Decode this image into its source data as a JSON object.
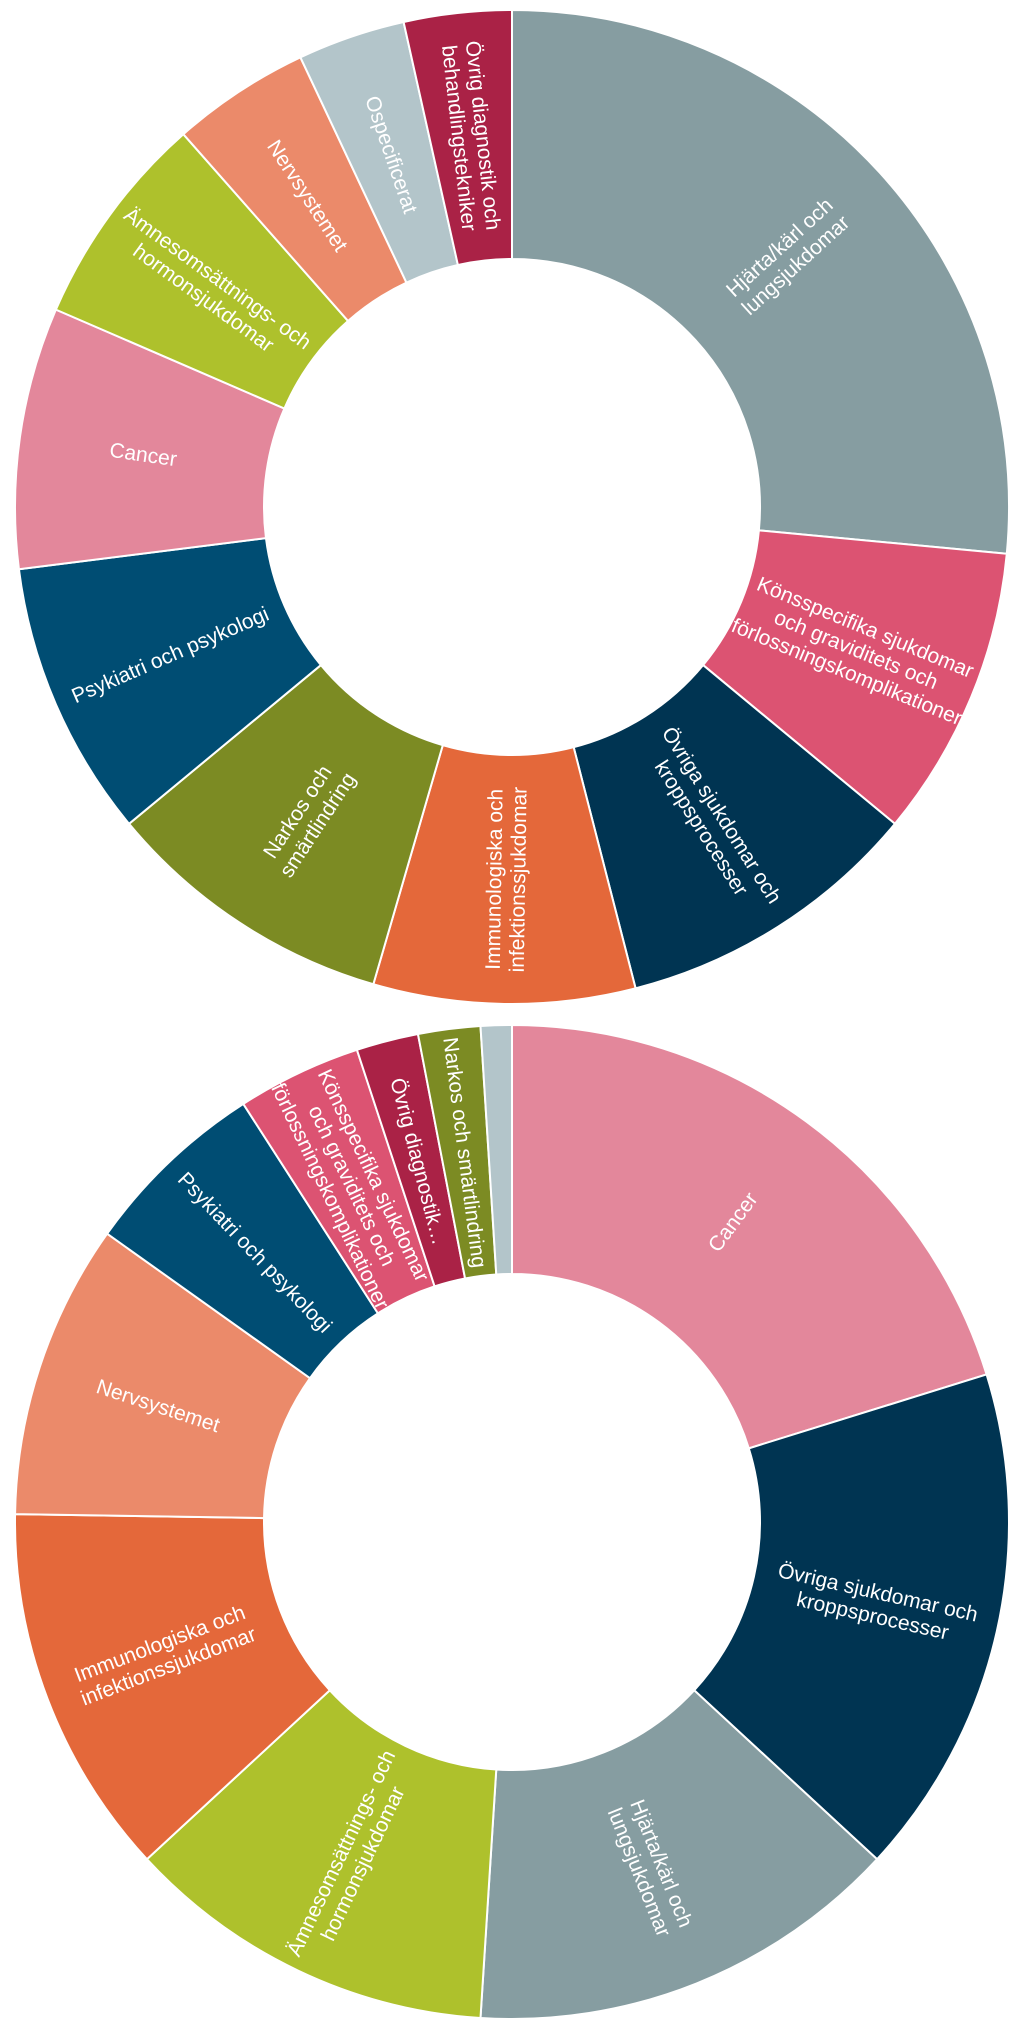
{
  "chart_data": [
    {
      "type": "pie",
      "donut": true,
      "title": "",
      "categories": [
        "Hjärta/kärl och lungsjukdomar",
        "Könsspecifika sjukdomar och graviditets och förlossningskomplikationer",
        "Övriga sjukdomar och kroppsprocesser",
        "Immunologiska och infektionssjukdomar",
        "Narkos och smärtlindring",
        "Psykiatri och psykologi",
        "Cancer",
        "Ämnesomsättnings- och hormonsjukdomar",
        "Nervsystemet",
        "Ospecificerat",
        "Övrig diagnostik och behandlingstekniker"
      ],
      "labels": [
        [
          "Hjärta/kärl och",
          "lungsjukdomar"
        ],
        [
          "Könsspecifika sjukdomar",
          "och graviditets och",
          "förlossningskomplikationer"
        ],
        [
          "Övriga sjukdomar  och",
          "kroppsprocesser"
        ],
        [
          "Immunologiska och",
          "infektionssjukdomar"
        ],
        [
          "Narkos och",
          "smärtlindring"
        ],
        [
          "Psykiatri och psykologi"
        ],
        [
          "Cancer"
        ],
        [
          "Ämnesomsättnings- och",
          "hormonsjukdomar"
        ],
        [
          "Nervsystemet"
        ],
        [
          "Ospecificerat"
        ],
        [
          "Övrig diagnostik och",
          "behandlingstekniker"
        ]
      ],
      "values": [
        26.5,
        9.5,
        10.0,
        8.5,
        9.5,
        9.0,
        8.5,
        7.0,
        4.5,
        3.5,
        3.5
      ],
      "colors": [
        "#869da1",
        "#dc5372",
        "#003452",
        "#e4683a",
        "#7c8b23",
        "#004d73",
        "#e3879b",
        "#aec12c",
        "#eb8a6a",
        "#b3c5ca",
        "#aa2246"
      ]
    },
    {
      "type": "pie",
      "donut": true,
      "title": "",
      "categories": [
        "Cancer",
        "Övriga sjukdomar och kroppsprocesser",
        "Hjärta/kärl och lungsjukdomar",
        "Ämnesomsättnings- och hormonsjukdomar",
        "Immunologiska och infektionssjukdomar",
        "Nervsystemet",
        "Psykiatri och psykologi",
        "Könsspecifika sjukdomar och graviditets och förlossningskomplikationer",
        "Övrig diagnostik…",
        "Narkos och smärtlindring",
        ""
      ],
      "labels": [
        [
          "Cancer"
        ],
        [
          "Övriga sjukdomar och",
          "kroppsprocesser"
        ],
        [
          "Hjärta/kärl och",
          "lungsjukdomar"
        ],
        [
          "Ämnesomsättnings- och",
          "hormonsjukdomar"
        ],
        [
          "Immunologiska och",
          "infektionssjukdomar"
        ],
        [
          "Nervsystemet"
        ],
        [
          "Psykiatri och psykologi"
        ],
        [
          "Könsspecifika sjukdomar",
          "och graviditets och",
          "förlossningskomplikationer"
        ],
        [
          "Övrig diagnostik…"
        ],
        [
          "Narkos och smärtlindring"
        ],
        []
      ],
      "values": [
        20.0,
        16.5,
        14.0,
        12.0,
        12.0,
        9.5,
        6.0,
        4.0,
        2.0,
        2.0,
        1.0
      ],
      "colors": [
        "#e3879b",
        "#003452",
        "#869da1",
        "#aec12c",
        "#e4683a",
        "#eb8a6a",
        "#004d73",
        "#dc5372",
        "#aa2246",
        "#7c8b23",
        "#b3c5ca"
      ]
    }
  ]
}
